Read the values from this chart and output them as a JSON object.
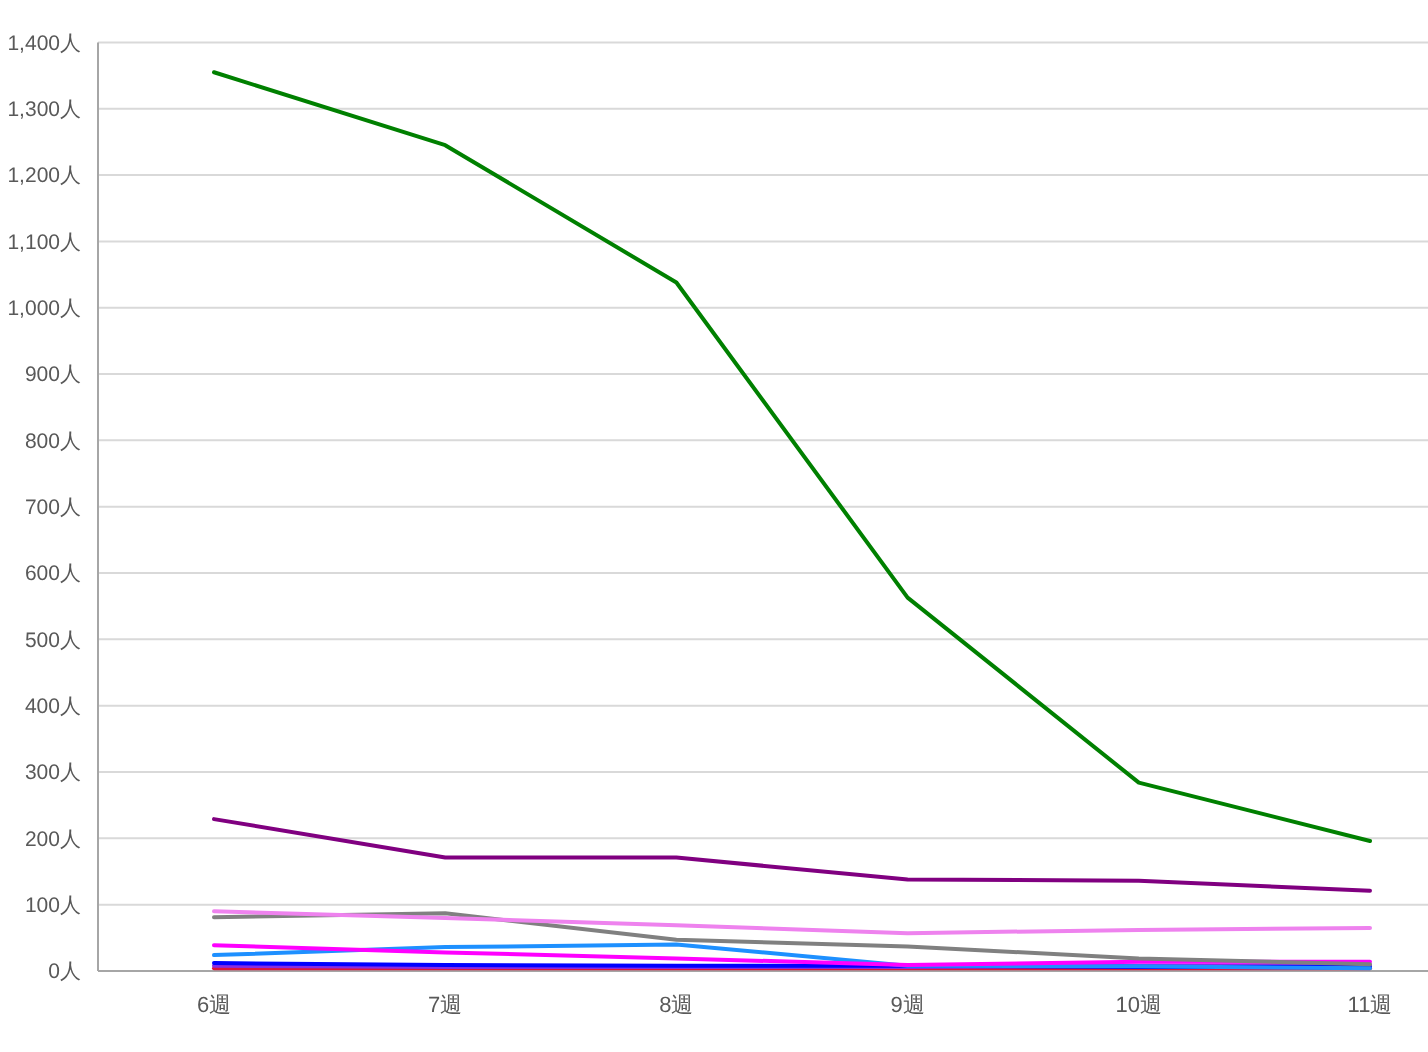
{
  "chart_data": {
    "type": "line",
    "categories": [
      "6週",
      "7週",
      "8週",
      "9週",
      "10週",
      "11週"
    ],
    "ylim": [
      0,
      1400
    ],
    "yticks": [
      {
        "value": 0,
        "label": "0人"
      },
      {
        "value": 100,
        "label": "100人"
      },
      {
        "value": 200,
        "label": "200人"
      },
      {
        "value": 300,
        "label": "300人"
      },
      {
        "value": 400,
        "label": "400人"
      },
      {
        "value": 500,
        "label": "500人"
      },
      {
        "value": 600,
        "label": "600人"
      },
      {
        "value": 700,
        "label": "700人"
      },
      {
        "value": 800,
        "label": "800人"
      },
      {
        "value": 900,
        "label": "900人"
      },
      {
        "value": 1000,
        "label": "1,000人"
      },
      {
        "value": 1100,
        "label": "1,100人"
      },
      {
        "value": 1200,
        "label": "1,200人"
      },
      {
        "value": 1300,
        "label": "1,300人"
      },
      {
        "value": 1400,
        "label": "1,400人"
      }
    ],
    "grid": "y",
    "series": [
      {
        "color": "#dc143c",
        "values": [
          4,
          4,
          4,
          4,
          4,
          4
        ]
      },
      {
        "color": "#8a2be2",
        "values": [
          8,
          6,
          6,
          6,
          8,
          9
        ]
      },
      {
        "color": "#0000ff",
        "values": [
          12,
          9,
          8,
          8,
          6,
          6
        ]
      },
      {
        "color": "#1e90ff",
        "values": [
          24,
          36,
          40,
          8,
          7,
          4
        ]
      },
      {
        "color": "#ff00ff",
        "values": [
          39,
          28,
          19,
          9,
          14,
          14
        ]
      },
      {
        "color": "#808080",
        "values": [
          81,
          87,
          47,
          37,
          19,
          10
        ]
      },
      {
        "color": "#ee82ee",
        "values": [
          90,
          80,
          69,
          57,
          62,
          65
        ]
      },
      {
        "color": "#800080",
        "values": [
          229,
          171,
          171,
          138,
          136,
          121
        ]
      },
      {
        "color": "#008000",
        "values": [
          1355,
          1245,
          1038,
          563,
          284,
          196
        ]
      }
    ]
  }
}
